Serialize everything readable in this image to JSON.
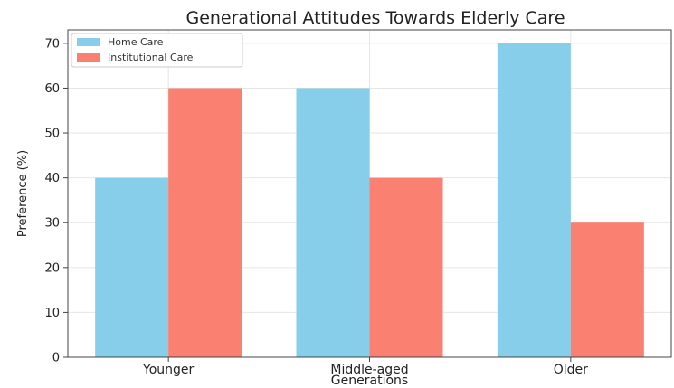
{
  "chart_data": {
    "type": "bar",
    "title": "Generational Attitudes Towards Elderly Care",
    "xlabel": "Generations",
    "ylabel": "Preference (%)",
    "categories": [
      "Younger",
      "Middle-aged",
      "Older"
    ],
    "series": [
      {
        "name": "Home Care",
        "values": [
          40,
          60,
          70
        ],
        "color": "#87CEEB"
      },
      {
        "name": "Institutional Care",
        "values": [
          60,
          40,
          30
        ],
        "color": "#FA8072"
      }
    ],
    "ylim": [
      0,
      73
    ],
    "yticks": [
      0,
      10,
      20,
      30,
      40,
      50,
      60,
      70
    ],
    "grid": true,
    "legend_position": "top-left"
  }
}
